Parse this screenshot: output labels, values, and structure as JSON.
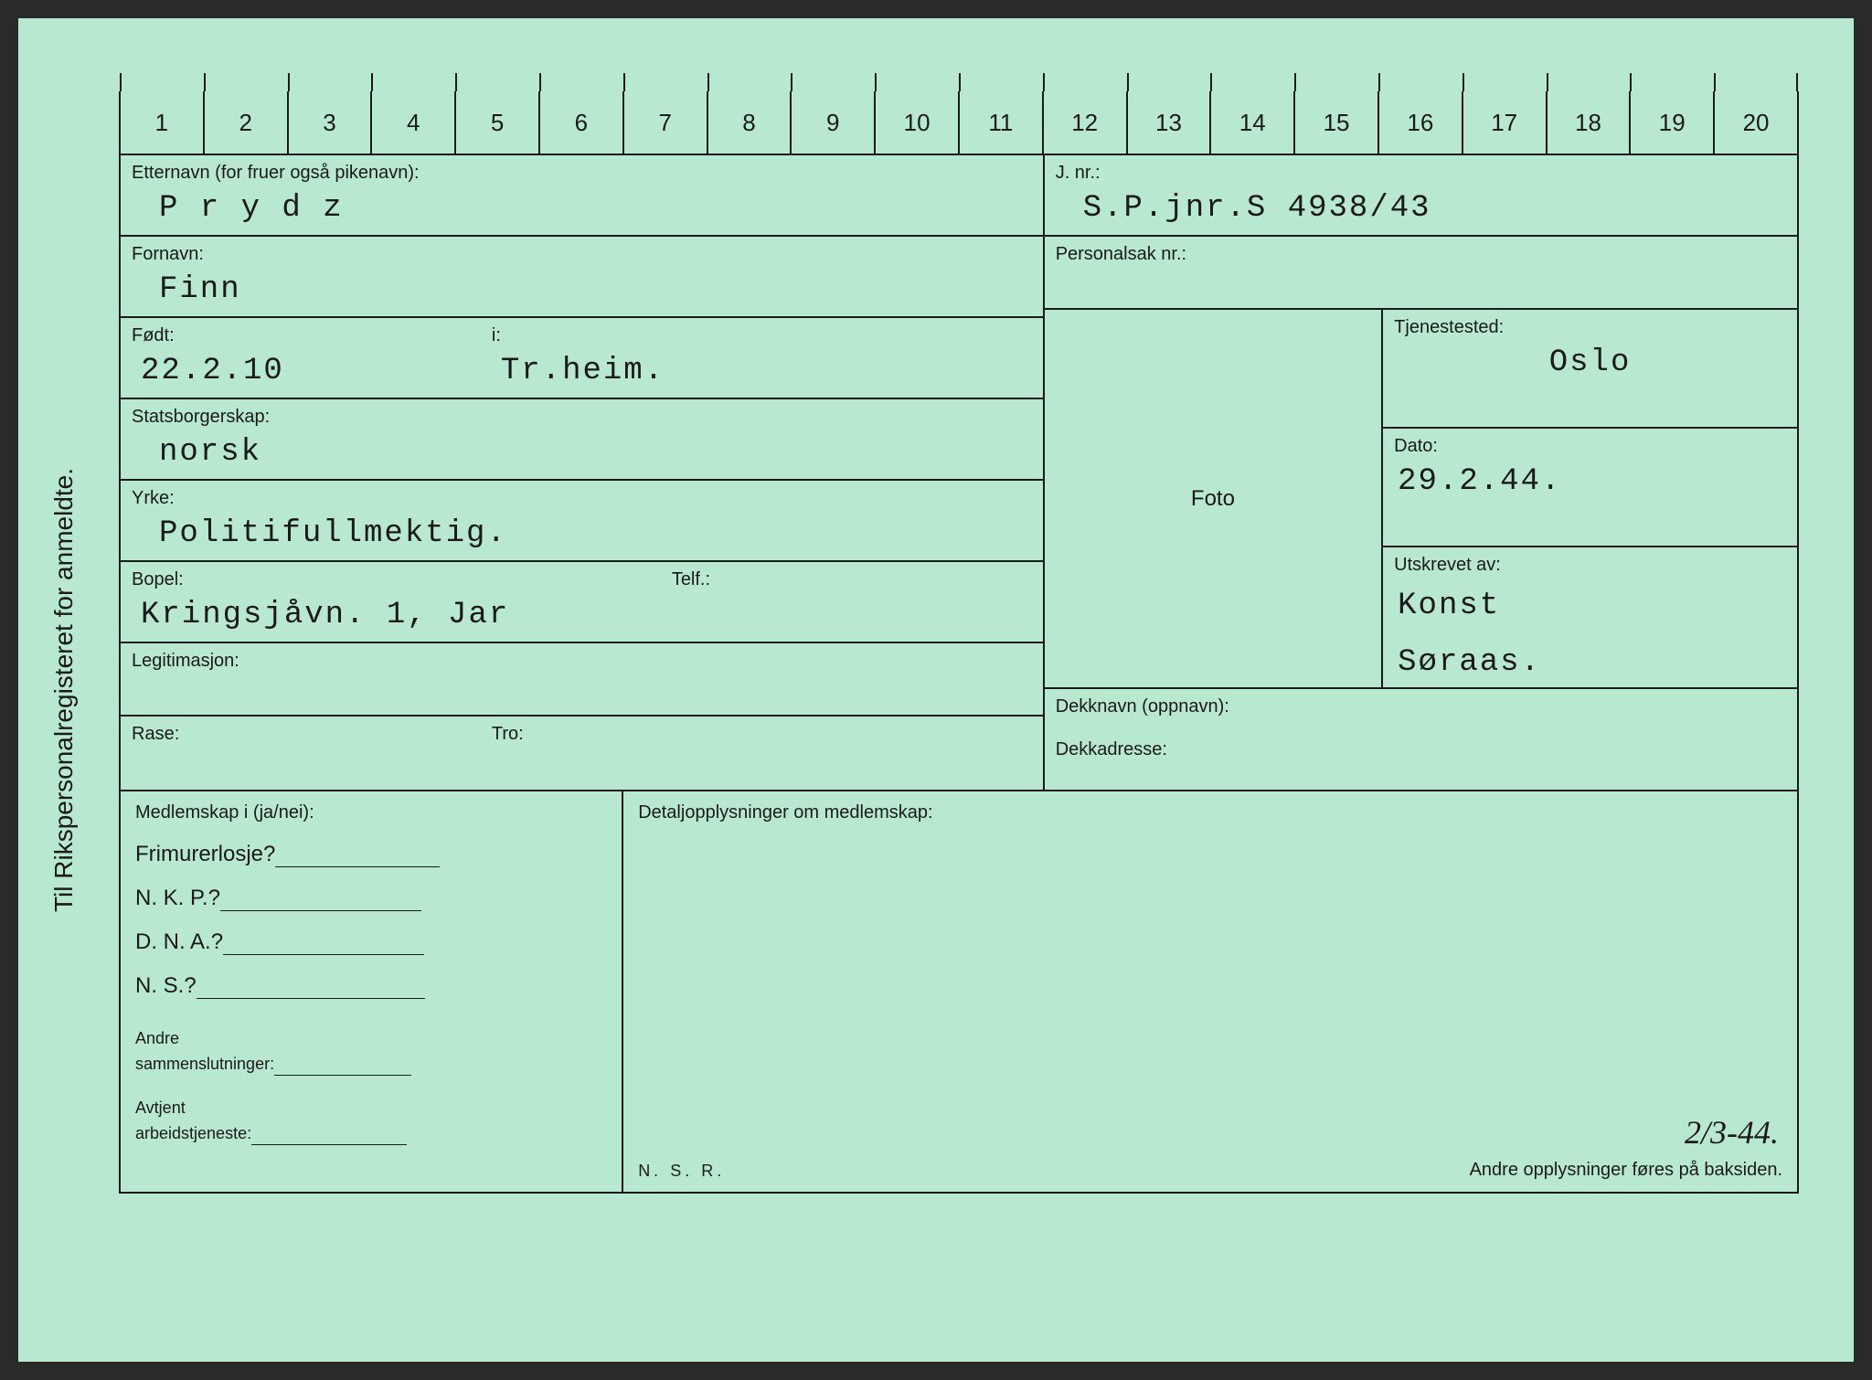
{
  "sideLabel": "Til Rikspersonalregisteret for anmeldte.",
  "ruler": [
    "1",
    "2",
    "3",
    "4",
    "5",
    "6",
    "7",
    "8",
    "9",
    "10",
    "11",
    "12",
    "13",
    "14",
    "15",
    "16",
    "17",
    "18",
    "19",
    "20"
  ],
  "labels": {
    "etternavn": "Etternavn (for fruer også pikenavn):",
    "fornavn": "Fornavn:",
    "fodt": "Født:",
    "i": "i:",
    "statsborgerskap": "Statsborgerskap:",
    "yrke": "Yrke:",
    "bopel": "Bopel:",
    "telf": "Telf.:",
    "legitimasjon": "Legitimasjon:",
    "rase": "Rase:",
    "tro": "Tro:",
    "jnr": "J. nr.:",
    "personalsak": "Personalsak nr.:",
    "foto": "Foto",
    "tjenestested": "Tjenestested:",
    "dato": "Dato:",
    "utskrevet": "Utskrevet av:",
    "dekknavn": "Dekknavn (oppnavn):",
    "dekkadresse": "Dekkadresse:",
    "medlemskap": "Medlemskap i (ja/nei):",
    "detaljopplysninger": "Detaljopplysninger om medlemskap:",
    "frimurer": "Frimurerlosje?",
    "nkp": "N. K. P.?",
    "dna": "D. N. A.?",
    "ns": "N. S.?",
    "andre": "Andre\nsammenslutninger:",
    "avtjent": "Avtjent\narbeidstjeneste:",
    "nsr": "N. S. R.",
    "footerNote": "Andre opplysninger føres på baksiden."
  },
  "values": {
    "etternavn": "P r y d z",
    "fornavn": "Finn",
    "fodt": "22.2.10",
    "i": "Tr.heim.",
    "statsborgerskap": "norsk",
    "yrke": "Politifullmektig.",
    "bopel": "Kringsjåvn. 1, Jar",
    "jnr": "S.P.jnr.S 4938/43",
    "tjenestested": "Oslo",
    "dato": "29.2.44.",
    "utskrevet1": "Konst",
    "utskrevet2": "Søraas.",
    "handwritten": "2/3-44."
  },
  "colors": {
    "cardBg": "#b8e8d0",
    "ink": "#1a1a1a"
  }
}
